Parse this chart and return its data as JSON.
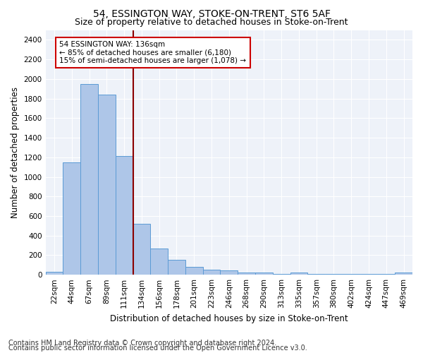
{
  "title": "54, ESSINGTON WAY, STOKE-ON-TRENT, ST6 5AF",
  "subtitle": "Size of property relative to detached houses in Stoke-on-Trent",
  "xlabel": "Distribution of detached houses by size in Stoke-on-Trent",
  "ylabel": "Number of detached properties",
  "categories": [
    "22sqm",
    "44sqm",
    "67sqm",
    "89sqm",
    "111sqm",
    "134sqm",
    "156sqm",
    "178sqm",
    "201sqm",
    "223sqm",
    "246sqm",
    "268sqm",
    "290sqm",
    "313sqm",
    "335sqm",
    "357sqm",
    "380sqm",
    "402sqm",
    "424sqm",
    "447sqm",
    "469sqm"
  ],
  "values": [
    30,
    1150,
    1950,
    1840,
    1210,
    520,
    270,
    155,
    80,
    50,
    45,
    25,
    25,
    5,
    20,
    10,
    5,
    5,
    5,
    5,
    25
  ],
  "bar_color": "#aec6e8",
  "bar_edge_color": "#5b9bd5",
  "vline_index": 5,
  "vline_color": "#8b0000",
  "annotation_text": "54 ESSINGTON WAY: 136sqm\n← 85% of detached houses are smaller (6,180)\n15% of semi-detached houses are larger (1,078) →",
  "annotation_box_color": "#cc0000",
  "ylim": [
    0,
    2500
  ],
  "yticks": [
    0,
    200,
    400,
    600,
    800,
    1000,
    1200,
    1400,
    1600,
    1800,
    2000,
    2200,
    2400
  ],
  "background_color": "#eef2f9",
  "grid_color": "#ffffff",
  "footnote1": "Contains HM Land Registry data © Crown copyright and database right 2024.",
  "footnote2": "Contains public sector information licensed under the Open Government Licence v3.0.",
  "title_fontsize": 10,
  "subtitle_fontsize": 9,
  "label_fontsize": 8.5,
  "tick_fontsize": 7.5,
  "footnote_fontsize": 7
}
